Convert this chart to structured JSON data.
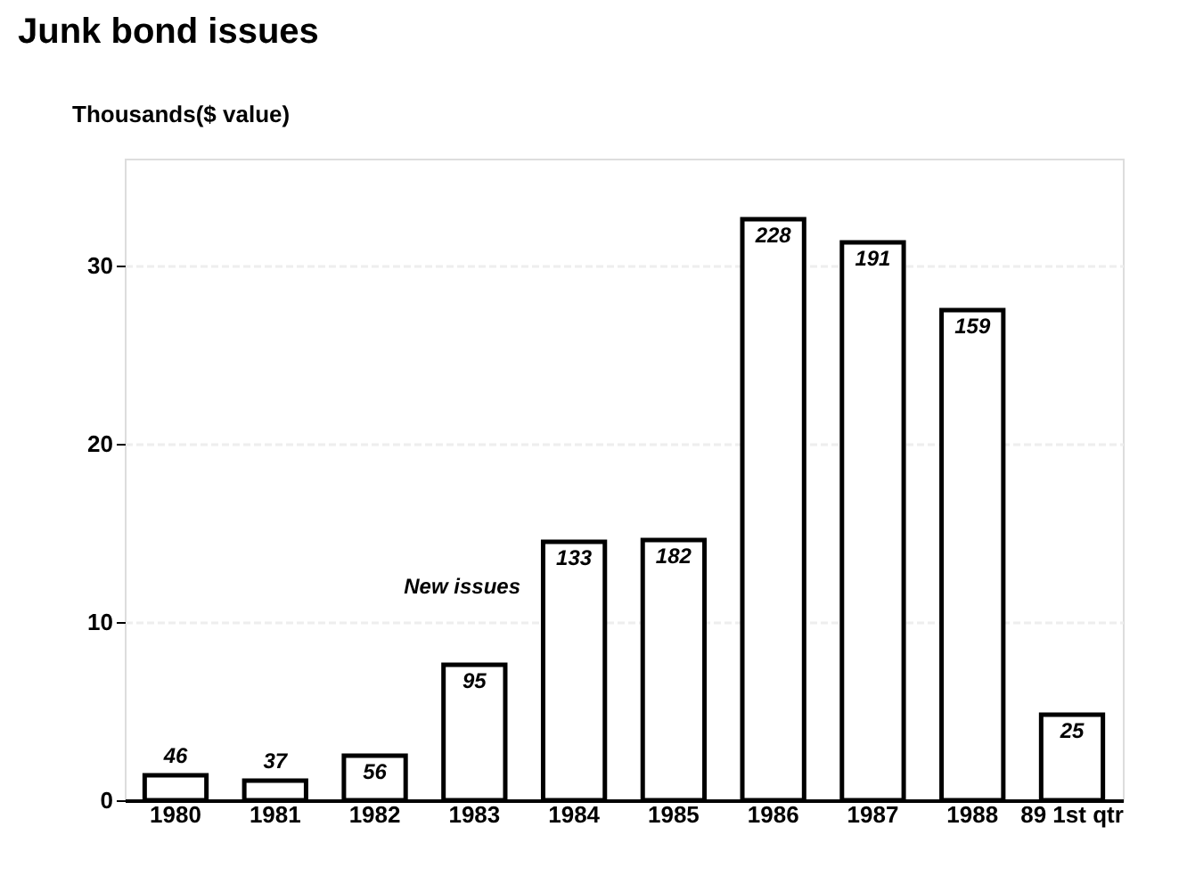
{
  "chart_data": {
    "type": "bar",
    "title": "Junk bond issues",
    "ylabel": "Thousands($ value)",
    "categories": [
      "1980",
      "1981",
      "1982",
      "1983",
      "1984",
      "1985",
      "1986",
      "1987",
      "1988",
      "89 1st qtr"
    ],
    "values": [
      1.4,
      1.1,
      2.5,
      7.6,
      14.5,
      14.6,
      32.6,
      31.3,
      27.5,
      4.8
    ],
    "color": "#ffffff",
    "ylim": [
      0,
      36
    ],
    "yticks": [
      0,
      10,
      20,
      30
    ],
    "grid": "y",
    "annotations": [
      "New issues",
      {
        "text": "46",
        "x": "1980",
        "y": 1.4
      },
      {
        "text": "37",
        "x": "1981",
        "y": 1.1
      },
      {
        "text": "56",
        "x": "1982",
        "y": 2.5
      },
      {
        "text": "95",
        "x": "1983",
        "y": 7.6
      },
      {
        "text": "133",
        "x": "1984",
        "y": 14.5
      },
      {
        "text": "182",
        "x": "1985",
        "y": 14.6
      },
      {
        "text": "228",
        "x": "1986",
        "y": 32.6
      },
      {
        "text": "191",
        "x": "1987",
        "y": 31.3
      },
      {
        "text": "159",
        "x": "1988",
        "y": 27.5
      },
      {
        "text": "25",
        "x": "89 1st qtr",
        "y": 4.8
      }
    ]
  }
}
